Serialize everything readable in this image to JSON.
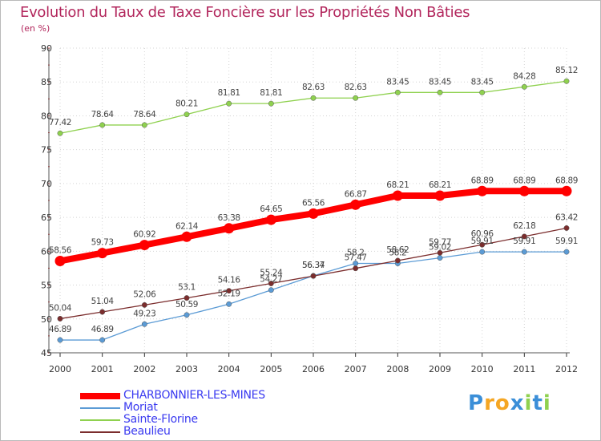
{
  "chart_data": {
    "type": "line",
    "title": "Evolution du Taux de Taxe Foncière sur les Propriétés Non Bâties",
    "unit_label": "(en %)",
    "xlabel": "",
    "ylabel": "(en %)",
    "ylim": [
      45,
      90
    ],
    "yticks": [
      45,
      50,
      55,
      60,
      65,
      70,
      75,
      80,
      85,
      90
    ],
    "categories": [
      "2000",
      "2001",
      "2002",
      "2003",
      "2004",
      "2005",
      "2006",
      "2007",
      "2008",
      "2009",
      "2010",
      "2011",
      "2012"
    ],
    "legend_position": "bottom-left",
    "series": [
      {
        "name": "CHARBONNIER-LES-MINES",
        "color": "#ff0000",
        "emphasis": "thick",
        "values": [
          58.56,
          59.73,
          60.92,
          62.14,
          63.38,
          64.65,
          65.56,
          66.87,
          68.21,
          68.21,
          68.89,
          68.89,
          68.89
        ],
        "labels": [
          "58.56",
          "59.73",
          "60.92",
          "62.14",
          "63.38",
          "64.65",
          "65.56",
          "66.87",
          "68.21",
          "68.21",
          "68.89",
          "68.89",
          "68.89"
        ]
      },
      {
        "name": "Moriat",
        "color": "#5b9bd5",
        "emphasis": "thin",
        "values": [
          46.89,
          46.89,
          49.23,
          50.59,
          52.19,
          54.27,
          56.37,
          58.2,
          58.2,
          59.02,
          59.91,
          59.91,
          59.91
        ],
        "labels": [
          "46.89",
          "46.89",
          "49.23",
          "50.59",
          "52.19",
          "54.27",
          "56.37",
          "58.2",
          "58.2",
          "59.02",
          "59.91",
          "59.91",
          "59.91"
        ]
      },
      {
        "name": "Sainte-Florine",
        "color": "#8fd14f",
        "emphasis": "thin",
        "values": [
          77.42,
          78.64,
          78.64,
          80.21,
          81.81,
          81.81,
          82.63,
          82.63,
          83.45,
          83.45,
          83.45,
          84.28,
          85.12
        ],
        "labels": [
          "77.42",
          "78.64",
          "78.64",
          "80.21",
          "81.81",
          "81.81",
          "82.63",
          "82.63",
          "83.45",
          "83.45",
          "83.45",
          "84.28",
          "85.12"
        ]
      },
      {
        "name": "Beaulieu",
        "color": "#7b2d2d",
        "emphasis": "thin",
        "values": [
          50.04,
          51.04,
          52.06,
          53.1,
          54.16,
          55.24,
          56.34,
          57.47,
          58.62,
          59.77,
          60.96,
          62.18,
          63.42
        ],
        "labels": [
          "50.04",
          "51.04",
          "52.06",
          "53.1",
          "54.16",
          "55.24",
          "56.34",
          "57.47",
          "58.62",
          "59.77",
          "60.96",
          "62.18",
          "63.42"
        ]
      }
    ]
  },
  "logo": {
    "text": "Proxiti",
    "letters": [
      "P",
      "r",
      "o",
      "x",
      "i",
      "t",
      "i"
    ],
    "colors": [
      "#3b8fd8",
      "#f5a623",
      "#f5a623",
      "#3b8fd8",
      "#8fd14f",
      "#3b8fd8",
      "#8fd14f"
    ]
  }
}
